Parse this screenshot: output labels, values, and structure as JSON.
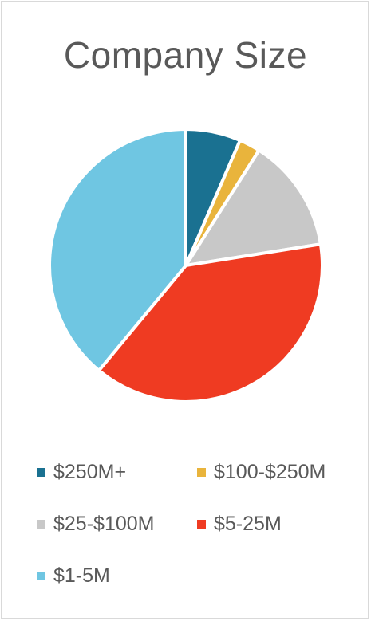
{
  "chart_data": {
    "type": "pie",
    "title": "Company Size",
    "legend_position": "bottom",
    "slices": [
      {
        "label": "$250M+",
        "value": 6.5,
        "color": "#1a7191"
      },
      {
        "label": "$100-$250M",
        "value": 2.5,
        "color": "#e9b43c"
      },
      {
        "label": "$25-$100M",
        "value": 13.5,
        "color": "#c8c8c8"
      },
      {
        "label": "$5-25M",
        "value": 38.5,
        "color": "#ef3b22"
      },
      {
        "label": "$1-5M",
        "value": 39.0,
        "color": "#6fc6e2"
      }
    ]
  }
}
